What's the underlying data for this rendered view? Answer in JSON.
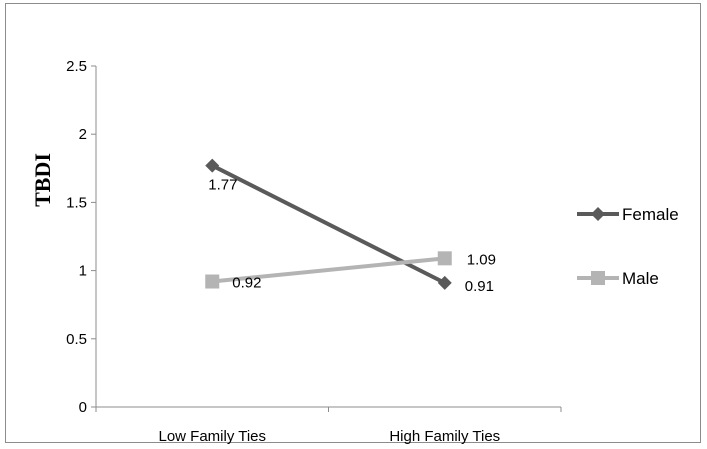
{
  "chart_data": {
    "type": "line",
    "ylabel": "TBDI",
    "categories": [
      "Low Family Ties",
      "High Family Ties"
    ],
    "ylim": [
      0,
      2.5
    ],
    "yticks": [
      "0",
      "0.5",
      "1",
      "1.5",
      "2",
      "2.5"
    ],
    "legend_position": "right",
    "series": [
      {
        "name": "Female",
        "values": [
          1.77,
          0.91
        ],
        "labels": [
          "1.77",
          "0.91"
        ],
        "color": "#5a5a5a",
        "marker": "diamond"
      },
      {
        "name": "Male",
        "values": [
          0.92,
          1.09
        ],
        "labels": [
          "0.92",
          "1.09"
        ],
        "color": "#b4b4b4",
        "marker": "square"
      }
    ]
  }
}
